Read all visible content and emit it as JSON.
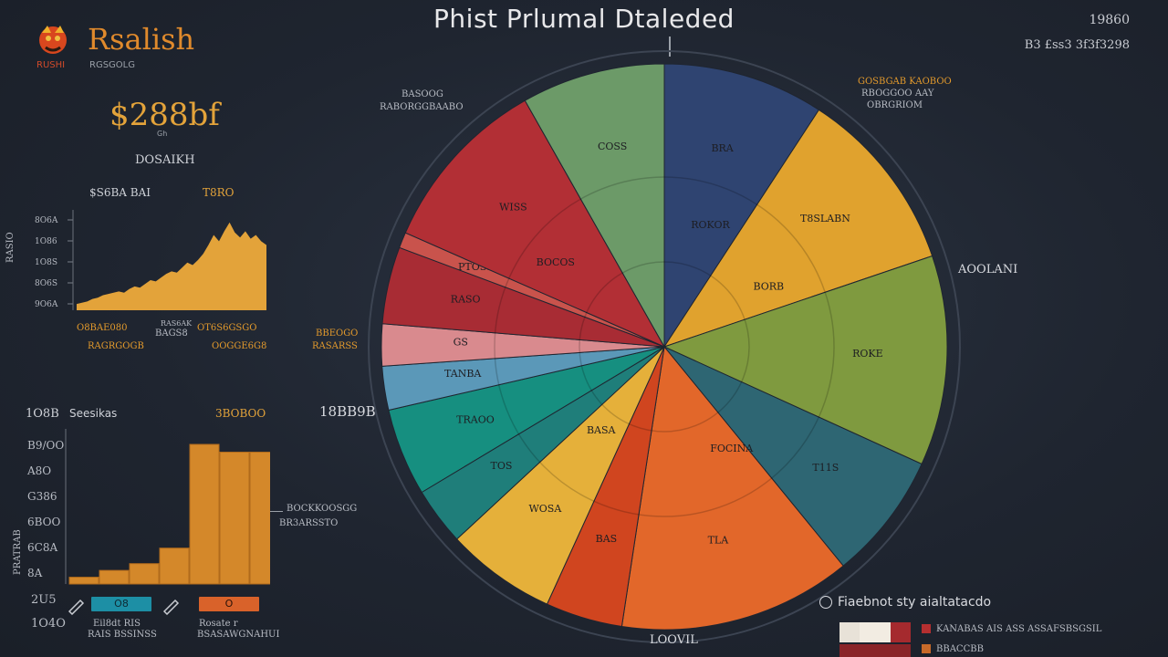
{
  "header": {
    "title": "Phist Prlumal Dtaleded",
    "top_right_1": "19860",
    "top_right_2": "B3 £ss3 3f3f3298"
  },
  "brand": {
    "name": "Rsalish",
    "sub_left": "RUSHI",
    "sub_right": "RGSGOLG"
  },
  "kpi": {
    "value": "$288bf",
    "sub": "Gh",
    "label": "DOSAIKH"
  },
  "area_panel": {
    "header_left": "$S6BA BAI",
    "header_right": "T8RO",
    "side_label": "RASIO",
    "bottom_left": "O8BAE080",
    "bottom_left_2": "RAGRGOGB",
    "bottom_mid": "BAGS8",
    "bottom_mid_2": "RAS6AK",
    "bottom_right": "OT6S6GSGO",
    "bottom_right_2": "OOGGE6G8"
  },
  "bar_panel": {
    "header_left": "1O8B",
    "header_mid": "Seesikas",
    "header_right": "3BOBOO",
    "side_label": "PRATRAB",
    "button_left": "O8",
    "button_right": "O",
    "caption_left": "Eil8dt RIS",
    "caption_left_2": "RAIS BSSINSS",
    "caption_right": "Rosate r",
    "caption_right_2": "BSASAWGNAHUI",
    "annotation_1": "BOCKKOOSGG",
    "annotation_2": "BR3ARSSTO"
  },
  "pie_panel": {
    "left_label": "18BB9B",
    "left_callout_1": "BASOOG",
    "left_callout_2": "RABORGGBAABO",
    "left_callout_3": "BBEOGO",
    "left_callout_4": "RASARSS",
    "right_callout_1": "GOSBGAB KAOBOO",
    "right_callout_2": "RBOGGOO AAY",
    "right_callout_3": "OBRGRIOM",
    "right_label": "AOOLANI",
    "bottom_label": "LOOVIL"
  },
  "legend": {
    "title": "Fiaebnot sty aialtatacdo",
    "item_1": "KANABAS AIS ASS ASSAFSBSGSIL",
    "item_2": "BBACCBB"
  },
  "colors": {
    "background": "#1f2530",
    "accent_orange": "#e39a2c",
    "accent_red": "#c0392b",
    "text": "#c9ccd2"
  },
  "chart_data": [
    {
      "type": "area",
      "title": "",
      "y_tick_labels": [
        "8O6A",
        "1O86",
        "1O8S",
        "8O6S",
        "9O6A"
      ],
      "values": [
        5,
        6,
        7,
        9,
        10,
        12,
        13,
        14,
        15,
        14,
        17,
        19,
        18,
        21,
        24,
        23,
        26,
        29,
        31,
        30,
        34,
        38,
        36,
        40,
        45,
        52,
        60,
        55,
        63,
        70,
        62,
        58,
        63,
        57,
        60,
        55,
        52
      ],
      "ylim": [
        0,
        80
      ],
      "color": "#e3a33a"
    },
    {
      "type": "bar",
      "title": "",
      "y_tick_labels": [
        "B9/OO",
        "A8O",
        "G386",
        "6BOO",
        "6C8A",
        "8A"
      ],
      "categories": [
        "",
        "",
        "",
        "",
        "",
        "",
        ""
      ],
      "values": [
        7,
        14,
        21,
        37,
        144,
        136,
        136
      ],
      "ylim": [
        0,
        160
      ],
      "color": "#d4882a"
    },
    {
      "type": "pie",
      "title": "Phist Prlumal Dtaleded",
      "slices": [
        {
          "label": "BRA",
          "value": 9.2,
          "color": "#2f4471"
        },
        {
          "label": "T8SLABN",
          "value": 10.6,
          "color": "#e0a22e"
        },
        {
          "label": "ROKE",
          "value": 12.0,
          "color": "#7f9a3f"
        },
        {
          "label": "T11S",
          "value": 7.3,
          "color": "#2e6673"
        },
        {
          "label": "TLA",
          "value": 13.3,
          "color": "#e2672a"
        },
        {
          "label": "BAS",
          "value": 4.4,
          "color": "#d0451f"
        },
        {
          "label": "WOSA",
          "value": 6.3,
          "color": "#e5b03a"
        },
        {
          "label": "TOS",
          "value": 3.3,
          "color": "#1f7e7a"
        },
        {
          "label": "TRAOO",
          "value": 5.0,
          "color": "#168f80"
        },
        {
          "label": "TANBA",
          "value": 2.5,
          "color": "#5b98b8"
        },
        {
          "label": "GS",
          "value": 2.4,
          "color": "#d98a8e"
        },
        {
          "label": "RASO",
          "value": 4.4,
          "color": "#a82c34"
        },
        {
          "label": "PTOSS",
          "value": 0.9,
          "color": "#c9534c"
        },
        {
          "label": "WISS",
          "value": 10.2,
          "color": "#b22f35"
        },
        {
          "label": "COSS",
          "value": 8.2,
          "color": "#6c9a68"
        }
      ],
      "inner_labels": [
        "ROKOR",
        "BORB",
        "BOCOS",
        "FOCINA",
        "BASA"
      ]
    }
  ]
}
